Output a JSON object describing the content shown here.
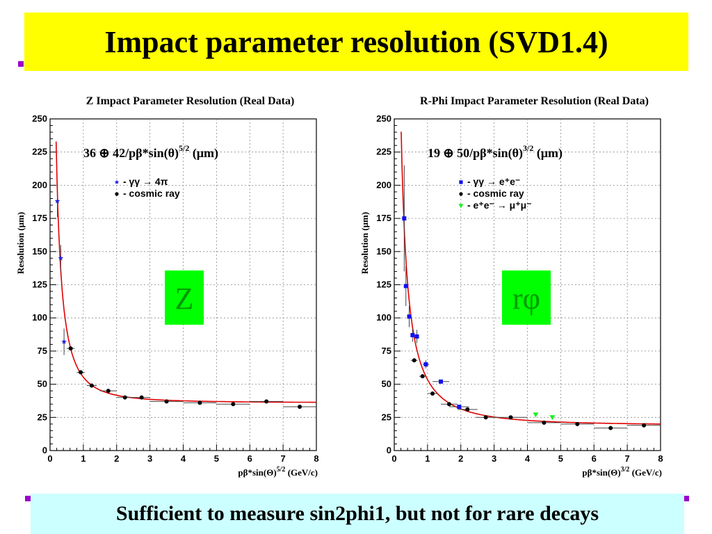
{
  "slide": {
    "title": "Impact parameter resolution (SVD1.4)",
    "footer": "Sufficient to measure sin2phi1, but not for rare decays",
    "title_bg": "#ffff00",
    "footer_bg": "#ccffff",
    "bullet_color": "#9900cc"
  },
  "chart_data": [
    {
      "type": "scatter",
      "title": "Z Impact Parameter Resolution (Real Data)",
      "ylabel": "Resolution (μm)",
      "xlabel": "pβ*sin(Θ)",
      "xlabel_exp": "5/2",
      "xlabel_unit": " (GeV/c)",
      "xlim": [
        0,
        8
      ],
      "ylim": [
        0,
        250
      ],
      "xticks": [
        0,
        1,
        2,
        3,
        4,
        5,
        6,
        7,
        8
      ],
      "yticks": [
        0,
        25,
        50,
        75,
        100,
        125,
        150,
        175,
        200,
        225,
        250
      ],
      "grid": true,
      "formula": "36 ⊕ 42/pβ*sin(θ)",
      "formula_exp": "5/2",
      "formula_unit": " (μm)",
      "fit": {
        "a": 36,
        "b": 42,
        "color": "#e00000"
      },
      "badge": {
        "text": "Z",
        "bg": "#00ff00",
        "color": "#009900"
      },
      "legend_position": "upper-center",
      "legend": [
        {
          "marker": "star",
          "color": "#2222dd",
          "text": "- γγ → 4π"
        },
        {
          "marker": "circle",
          "color": "#000000",
          "text": "- cosmic ray"
        }
      ],
      "series": [
        {
          "name": "- γγ → 4π",
          "marker": "star",
          "color": "#2222dd",
          "points": [
            {
              "x": 0.22,
              "y": 188,
              "yerr": 12
            },
            {
              "x": 0.32,
              "y": 145,
              "yerr": 10
            },
            {
              "x": 0.42,
              "y": 82,
              "yerr": 10
            }
          ]
        },
        {
          "name": "- cosmic ray",
          "marker": "circle",
          "color": "#000000",
          "points": [
            {
              "x": 0.62,
              "y": 77,
              "xerr": 0.12
            },
            {
              "x": 0.92,
              "y": 59,
              "xerr": 0.12
            },
            {
              "x": 1.25,
              "y": 49,
              "xerr": 0.15
            },
            {
              "x": 1.75,
              "y": 45,
              "xerr": 0.25
            },
            {
              "x": 2.25,
              "y": 40,
              "xerr": 0.25
            },
            {
              "x": 2.75,
              "y": 40,
              "xerr": 0.25
            },
            {
              "x": 3.5,
              "y": 37,
              "xerr": 0.5
            },
            {
              "x": 4.5,
              "y": 36,
              "xerr": 0.5
            },
            {
              "x": 5.5,
              "y": 35,
              "xerr": 0.5
            },
            {
              "x": 6.5,
              "y": 37,
              "xerr": 0.5
            },
            {
              "x": 7.5,
              "y": 33,
              "xerr": 0.5
            }
          ]
        }
      ]
    },
    {
      "type": "scatter",
      "title": "R-Phi Impact Parameter Resolution (Real Data)",
      "ylabel": "Resolution (μm)",
      "xlabel": "pβ*sin(Θ)",
      "xlabel_exp": "3/2",
      "xlabel_unit": " (GeV/c)",
      "xlim": [
        0,
        8
      ],
      "ylim": [
        0,
        250
      ],
      "xticks": [
        0,
        1,
        2,
        3,
        4,
        5,
        6,
        7,
        8
      ],
      "yticks": [
        0,
        25,
        50,
        75,
        100,
        125,
        150,
        175,
        200,
        225,
        250
      ],
      "grid": true,
      "formula": "19 ⊕ 50/pβ*sin(θ)",
      "formula_exp": "3/2",
      "formula_unit": " (μm)",
      "fit": {
        "a": 19,
        "b": 50,
        "color": "#e00000"
      },
      "badge": {
        "text": "rφ",
        "bg": "#00ff00",
        "color": "#009900"
      },
      "legend_position": "upper-center",
      "legend": [
        {
          "marker": "square",
          "color": "#1111ee",
          "text": "- γγ → e⁺e⁻"
        },
        {
          "marker": "circle",
          "color": "#000000",
          "text": "- cosmic ray"
        },
        {
          "marker": "triangle",
          "color": "#22ee22",
          "text": "- e⁺e⁻ → μ⁺μ⁻"
        }
      ],
      "series": [
        {
          "name": "- γγ → e⁺e⁻",
          "marker": "square",
          "color": "#1111ee",
          "points": [
            {
              "x": 0.3,
              "y": 175,
              "yerr": 40
            },
            {
              "x": 0.35,
              "y": 124,
              "yerr": 15
            },
            {
              "x": 0.45,
              "y": 101,
              "yerr": 8
            },
            {
              "x": 0.55,
              "y": 87,
              "yerr": 5
            },
            {
              "x": 0.68,
              "y": 86,
              "yerr": 5
            },
            {
              "x": 0.95,
              "y": 65,
              "yerr": 3,
              "xerr": 0.1
            },
            {
              "x": 1.4,
              "y": 52,
              "xerr": 0.25
            },
            {
              "x": 1.95,
              "y": 33,
              "xerr": 0.3
            }
          ]
        },
        {
          "name": "- cosmic ray",
          "marker": "circle",
          "color": "#000000",
          "points": [
            {
              "x": 0.6,
              "y": 68,
              "xerr": 0.1
            },
            {
              "x": 0.85,
              "y": 56,
              "xerr": 0.1
            },
            {
              "x": 1.15,
              "y": 43,
              "xerr": 0.15
            },
            {
              "x": 1.65,
              "y": 35,
              "xerr": 0.25
            },
            {
              "x": 2.2,
              "y": 31,
              "xerr": 0.3
            },
            {
              "x": 2.75,
              "y": 25,
              "xerr": 0.3
            },
            {
              "x": 3.5,
              "y": 25,
              "xerr": 0.5
            },
            {
              "x": 4.5,
              "y": 21,
              "xerr": 0.5
            },
            {
              "x": 5.5,
              "y": 20,
              "xerr": 0.5
            },
            {
              "x": 6.5,
              "y": 17,
              "xerr": 0.5
            },
            {
              "x": 7.5,
              "y": 19,
              "xerr": 0.5
            }
          ]
        },
        {
          "name": "- e⁺e⁻ → μ⁺μ⁻",
          "marker": "triangle",
          "color": "#22ee22",
          "points": [
            {
              "x": 4.25,
              "y": 27
            },
            {
              "x": 4.75,
              "y": 25
            }
          ]
        }
      ]
    }
  ]
}
